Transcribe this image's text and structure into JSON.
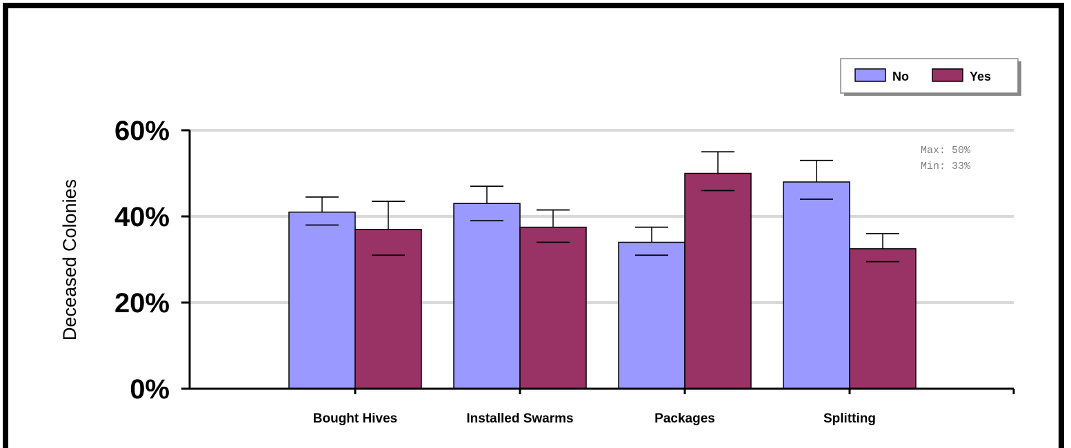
{
  "chart_data": {
    "type": "bar",
    "categories": [
      "Bought Hives",
      "Installed Swarms",
      "Packages",
      "Splitting"
    ],
    "series": [
      {
        "name": "No",
        "color": "#9999ff",
        "values": [
          41,
          43,
          34,
          48
        ],
        "err_low": [
          38,
          39,
          31,
          44
        ],
        "err_high": [
          44.5,
          47,
          37.5,
          53
        ]
      },
      {
        "name": "Yes",
        "color": "#993366",
        "values": [
          37,
          37.5,
          50,
          32.5
        ],
        "err_low": [
          31,
          34,
          46,
          29.5
        ],
        "err_high": [
          43.5,
          41.5,
          55,
          36
        ]
      }
    ],
    "title": "",
    "xlabel": "",
    "ylabel": "Deceased Colonies",
    "ylim": [
      0,
      60
    ],
    "yticks": [
      "0%",
      "20%",
      "40%",
      "60%"
    ],
    "ytick_values": [
      0,
      20,
      40,
      60
    ],
    "grid": true,
    "legend_position": "top-right",
    "stats": [
      "Max: 50%",
      "Min: 33%"
    ]
  }
}
